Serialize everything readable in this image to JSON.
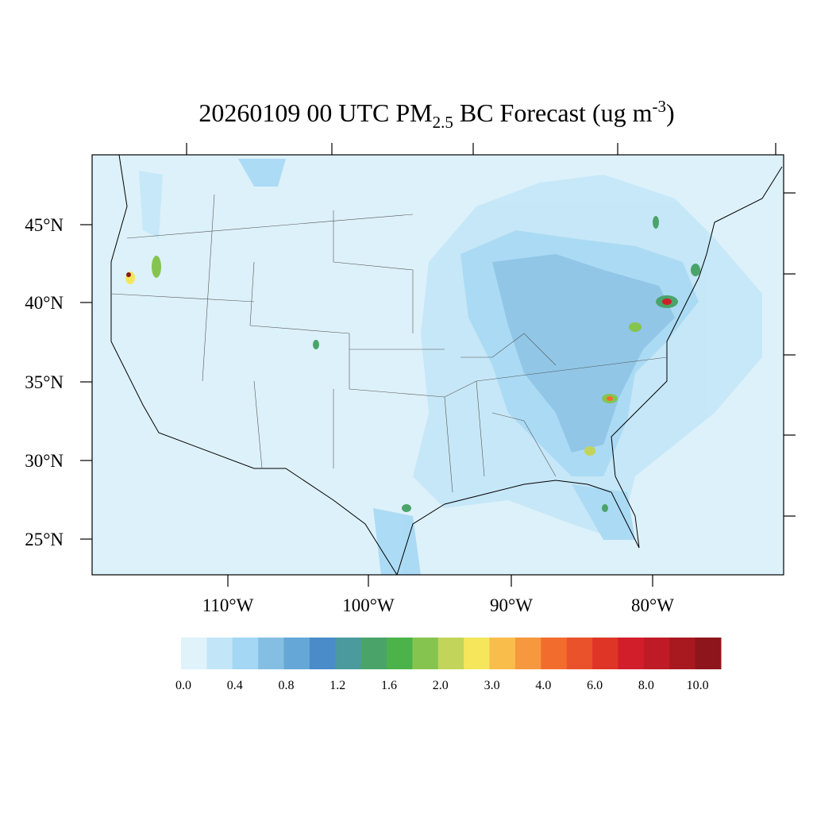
{
  "title": {
    "main": "20260109 00 UTC PM",
    "subscript": "2.5",
    "middle": " BC Forecast (ug m",
    "superscript": "-3",
    "end": ")"
  },
  "map": {
    "lat_labels": [
      "45°N",
      "40°N",
      "35°N",
      "30°N",
      "25°N"
    ],
    "lon_labels": [
      "110°W",
      "100°W",
      "90°W",
      "80°W"
    ]
  },
  "colorbar": {
    "colors": [
      "#e0f3fb",
      "#c2e6f7",
      "#a3d7f3",
      "#84bfe3",
      "#65a7d6",
      "#4a8bc9",
      "#4a9a9e",
      "#4aa46a",
      "#4bb34a",
      "#86c450",
      "#c2d55a",
      "#f5e65c",
      "#f9bd4c",
      "#f6993e",
      "#f26d2d",
      "#e9522a",
      "#de3527",
      "#d21e2b",
      "#bf1b26",
      "#a8181f",
      "#8f151c"
    ],
    "labels": [
      "0.0",
      "0.4",
      "0.8",
      "1.2",
      "1.6",
      "2.0",
      "3.0",
      "4.0",
      "6.0",
      "8.0",
      "10.0"
    ]
  }
}
